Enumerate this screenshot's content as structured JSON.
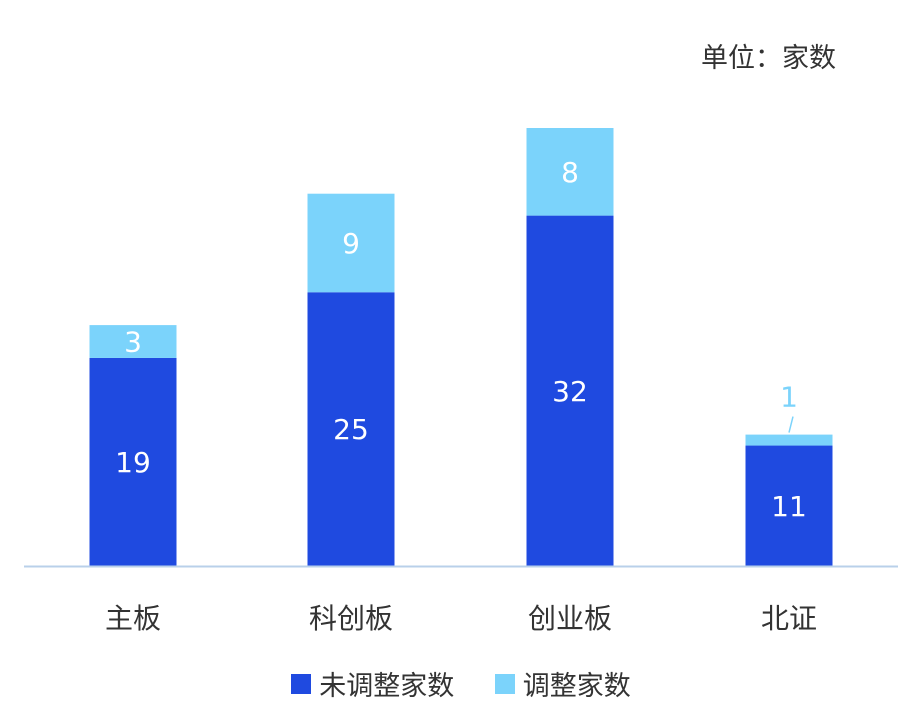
{
  "unit_label": "单位：家数",
  "colors": {
    "unadjusted": "#1f4ae0",
    "adjusted": "#7bd3fb",
    "axis": "#b9d0ea",
    "text": "#333333"
  },
  "legend": [
    {
      "name": "未调整家数",
      "color": "#1f4ae0"
    },
    {
      "name": "调整家数",
      "color": "#7bd3fb"
    }
  ],
  "chart_data": {
    "type": "bar",
    "stacked": true,
    "categories": [
      "主板",
      "科创板",
      "创业板",
      "北证"
    ],
    "series": [
      {
        "name": "未调整家数",
        "values": [
          19,
          25,
          32,
          11
        ]
      },
      {
        "name": "调整家数",
        "values": [
          3,
          9,
          8,
          1
        ]
      }
    ],
    "ylim": [
      0,
      40
    ],
    "grid": false,
    "legend_position": "bottom"
  }
}
